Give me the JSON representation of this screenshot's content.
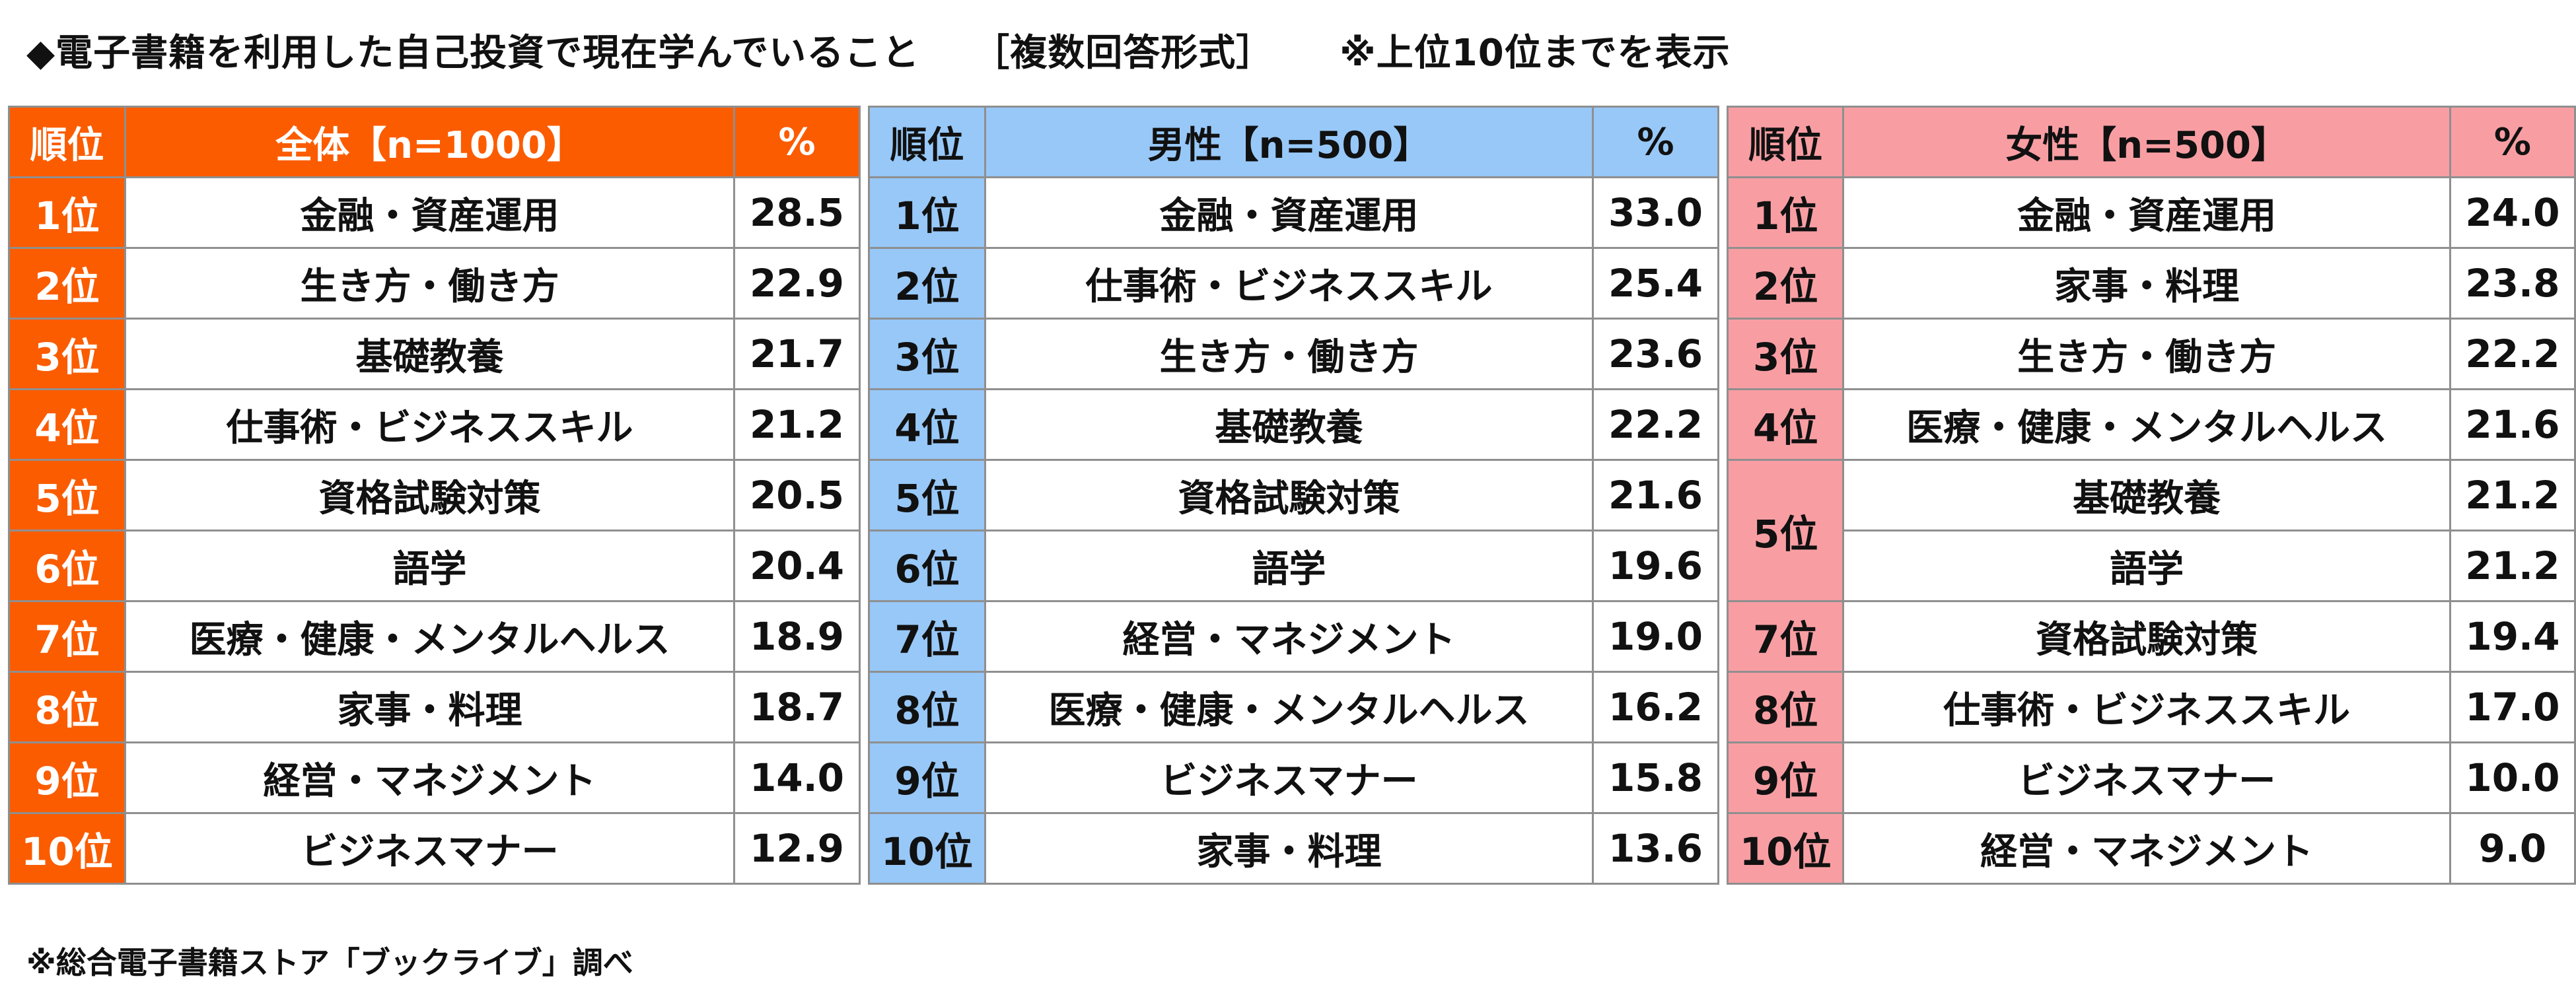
{
  "title": {
    "main": "◆電子書籍を利用した自己投資で現在学んでいること",
    "format": "［複数回答形式］",
    "note": "※上位10位までを表示"
  },
  "footnote": "※総合電子書籍ストア「ブックライブ」調べ",
  "colors": {
    "overall_header": "#fb5c00",
    "male_header": "#97c8f8",
    "female_header": "#f89ea3",
    "border": "#8f8f8f"
  },
  "chart_data": {
    "type": "table",
    "tables": [
      {
        "headers": [
          "順位",
          "全体【n=1000】",
          "%"
        ],
        "rows": [
          {
            "rank": "1位",
            "item": "金融・資産運用",
            "value": "28.5"
          },
          {
            "rank": "2位",
            "item": "生き方・働き方",
            "value": "22.9"
          },
          {
            "rank": "3位",
            "item": "基礎教養",
            "value": "21.7"
          },
          {
            "rank": "4位",
            "item": "仕事術・ビジネススキル",
            "value": "21.2"
          },
          {
            "rank": "5位",
            "item": "資格試験対策",
            "value": "20.5"
          },
          {
            "rank": "6位",
            "item": "語学",
            "value": "20.4"
          },
          {
            "rank": "7位",
            "item": "医療・健康・メンタルヘルス",
            "value": "18.9"
          },
          {
            "rank": "8位",
            "item": "家事・料理",
            "value": "18.7"
          },
          {
            "rank": "9位",
            "item": "経営・マネジメント",
            "value": "14.0"
          },
          {
            "rank": "10位",
            "item": "ビジネスマナー",
            "value": "12.9"
          }
        ]
      },
      {
        "headers": [
          "順位",
          "男性【n=500】",
          "%"
        ],
        "rows": [
          {
            "rank": "1位",
            "item": "金融・資産運用",
            "value": "33.0"
          },
          {
            "rank": "2位",
            "item": "仕事術・ビジネススキル",
            "value": "25.4"
          },
          {
            "rank": "3位",
            "item": "生き方・働き方",
            "value": "23.6"
          },
          {
            "rank": "4位",
            "item": "基礎教養",
            "value": "22.2"
          },
          {
            "rank": "5位",
            "item": "資格試験対策",
            "value": "21.6"
          },
          {
            "rank": "6位",
            "item": "語学",
            "value": "19.6"
          },
          {
            "rank": "7位",
            "item": "経営・マネジメント",
            "value": "19.0"
          },
          {
            "rank": "8位",
            "item": "医療・健康・メンタルヘルス",
            "value": "16.2"
          },
          {
            "rank": "9位",
            "item": "ビジネスマナー",
            "value": "15.8"
          },
          {
            "rank": "10位",
            "item": "家事・料理",
            "value": "13.6"
          }
        ]
      },
      {
        "headers": [
          "順位",
          "女性【n=500】",
          "%"
        ],
        "rows": [
          {
            "rank": "1位",
            "item": "金融・資産運用",
            "value": "24.0"
          },
          {
            "rank": "2位",
            "item": "家事・料理",
            "value": "23.8"
          },
          {
            "rank": "3位",
            "item": "生き方・働き方",
            "value": "22.2"
          },
          {
            "rank": "4位",
            "item": "医療・健康・メンタルヘルス",
            "value": "21.6"
          },
          {
            "rank": "5位",
            "item": "基礎教養",
            "value": "21.2"
          },
          {
            "rank": "",
            "item": "語学",
            "value": "21.2"
          },
          {
            "rank": "7位",
            "item": "資格試験対策",
            "value": "19.4"
          },
          {
            "rank": "8位",
            "item": "仕事術・ビジネススキル",
            "value": "17.0"
          },
          {
            "rank": "9位",
            "item": "ビジネスマナー",
            "value": "10.0"
          },
          {
            "rank": "10位",
            "item": "経営・マネジメント",
            "value": "9.0"
          }
        ]
      }
    ]
  }
}
